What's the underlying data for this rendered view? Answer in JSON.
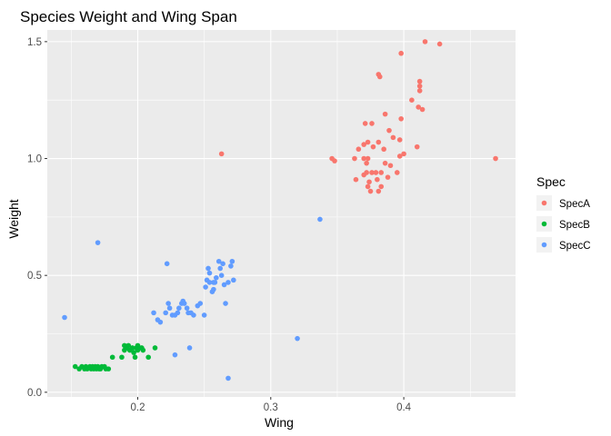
{
  "chart_data": {
    "type": "scatter",
    "title": "Species Weight and Wing Span",
    "xlabel": "Wing",
    "ylabel": "Weight",
    "xlim": [
      0.132,
      0.484
    ],
    "ylim": [
      -0.02,
      1.55
    ],
    "x_ticks": [
      0.2,
      0.3,
      0.4
    ],
    "x_tick_labels": [
      "0.2",
      "0.3",
      "0.4"
    ],
    "y_ticks": [
      0.0,
      0.5,
      1.0,
      1.5
    ],
    "y_tick_labels": [
      "0.0",
      "0.5",
      "1.0",
      "1.5"
    ],
    "grid": true,
    "legend_title": "Spec",
    "legend_position": "right",
    "panel_color": "#ebebeb",
    "grid_color": "#ffffff",
    "series": [
      {
        "name": "SpecA",
        "color": "#F8766D",
        "points": [
          [
            0.416,
            1.5
          ],
          [
            0.427,
            1.49
          ],
          [
            0.398,
            1.45
          ],
          [
            0.381,
            1.36
          ],
          [
            0.382,
            1.35
          ],
          [
            0.412,
            1.33
          ],
          [
            0.412,
            1.31
          ],
          [
            0.412,
            1.29
          ],
          [
            0.406,
            1.25
          ],
          [
            0.411,
            1.22
          ],
          [
            0.414,
            1.21
          ],
          [
            0.386,
            1.19
          ],
          [
            0.398,
            1.17
          ],
          [
            0.371,
            1.15
          ],
          [
            0.376,
            1.15
          ],
          [
            0.389,
            1.12
          ],
          [
            0.392,
            1.09
          ],
          [
            0.397,
            1.08
          ],
          [
            0.381,
            1.07
          ],
          [
            0.37,
            1.06
          ],
          [
            0.373,
            1.07
          ],
          [
            0.377,
            1.05
          ],
          [
            0.385,
            1.04
          ],
          [
            0.41,
            1.05
          ],
          [
            0.366,
            1.04
          ],
          [
            0.4,
            1.02
          ],
          [
            0.397,
            1.01
          ],
          [
            0.37,
            1.0
          ],
          [
            0.373,
            1.0
          ],
          [
            0.363,
            1.0
          ],
          [
            0.346,
            1.0
          ],
          [
            0.348,
            0.99
          ],
          [
            0.372,
            0.98
          ],
          [
            0.386,
            0.98
          ],
          [
            0.469,
            1.0
          ],
          [
            0.39,
            0.97
          ],
          [
            0.372,
            0.94
          ],
          [
            0.376,
            0.94
          ],
          [
            0.379,
            0.94
          ],
          [
            0.383,
            0.94
          ],
          [
            0.37,
            0.93
          ],
          [
            0.388,
            0.92
          ],
          [
            0.395,
            0.94
          ],
          [
            0.374,
            0.9
          ],
          [
            0.364,
            0.91
          ],
          [
            0.38,
            0.91
          ],
          [
            0.373,
            0.88
          ],
          [
            0.383,
            0.88
          ],
          [
            0.375,
            0.86
          ],
          [
            0.381,
            0.86
          ],
          [
            0.263,
            1.02
          ]
        ]
      },
      {
        "name": "SpecB",
        "color": "#00BA38",
        "points": [
          [
            0.153,
            0.11
          ],
          [
            0.156,
            0.1
          ],
          [
            0.158,
            0.11
          ],
          [
            0.16,
            0.1
          ],
          [
            0.161,
            0.11
          ],
          [
            0.162,
            0.1
          ],
          [
            0.164,
            0.11
          ],
          [
            0.165,
            0.1
          ],
          [
            0.166,
            0.11
          ],
          [
            0.167,
            0.1
          ],
          [
            0.168,
            0.11
          ],
          [
            0.169,
            0.1
          ],
          [
            0.17,
            0.11
          ],
          [
            0.171,
            0.1
          ],
          [
            0.173,
            0.11
          ],
          [
            0.172,
            0.1
          ],
          [
            0.175,
            0.11
          ],
          [
            0.176,
            0.1
          ],
          [
            0.178,
            0.1
          ],
          [
            0.181,
            0.15
          ],
          [
            0.19,
            0.2
          ],
          [
            0.192,
            0.19
          ],
          [
            0.194,
            0.18
          ],
          [
            0.193,
            0.2
          ],
          [
            0.196,
            0.19
          ],
          [
            0.197,
            0.17
          ],
          [
            0.199,
            0.19
          ],
          [
            0.2,
            0.18
          ],
          [
            0.201,
            0.19
          ],
          [
            0.203,
            0.19
          ],
          [
            0.204,
            0.18
          ],
          [
            0.2,
            0.2
          ],
          [
            0.213,
            0.19
          ],
          [
            0.198,
            0.15
          ],
          [
            0.188,
            0.15
          ],
          [
            0.208,
            0.15
          ],
          [
            0.19,
            0.18
          ]
        ]
      },
      {
        "name": "SpecC",
        "color": "#619CFF",
        "points": [
          [
            0.145,
            0.32
          ],
          [
            0.17,
            0.64
          ],
          [
            0.222,
            0.55
          ],
          [
            0.212,
            0.34
          ],
          [
            0.215,
            0.31
          ],
          [
            0.217,
            0.3
          ],
          [
            0.221,
            0.34
          ],
          [
            0.223,
            0.38
          ],
          [
            0.224,
            0.36
          ],
          [
            0.226,
            0.33
          ],
          [
            0.228,
            0.33
          ],
          [
            0.23,
            0.34
          ],
          [
            0.231,
            0.36
          ],
          [
            0.233,
            0.38
          ],
          [
            0.234,
            0.39
          ],
          [
            0.235,
            0.38
          ],
          [
            0.237,
            0.36
          ],
          [
            0.238,
            0.34
          ],
          [
            0.24,
            0.34
          ],
          [
            0.242,
            0.33
          ],
          [
            0.245,
            0.37
          ],
          [
            0.247,
            0.38
          ],
          [
            0.25,
            0.33
          ],
          [
            0.251,
            0.45
          ],
          [
            0.252,
            0.48
          ],
          [
            0.253,
            0.53
          ],
          [
            0.254,
            0.51
          ],
          [
            0.254,
            0.47
          ],
          [
            0.256,
            0.43
          ],
          [
            0.257,
            0.47
          ],
          [
            0.259,
            0.49
          ],
          [
            0.261,
            0.56
          ],
          [
            0.262,
            0.53
          ],
          [
            0.263,
            0.5
          ],
          [
            0.264,
            0.55
          ],
          [
            0.265,
            0.46
          ],
          [
            0.266,
            0.38
          ],
          [
            0.268,
            0.47
          ],
          [
            0.27,
            0.54
          ],
          [
            0.271,
            0.56
          ],
          [
            0.272,
            0.48
          ],
          [
            0.239,
            0.19
          ],
          [
            0.228,
            0.16
          ],
          [
            0.268,
            0.06
          ],
          [
            0.32,
            0.23
          ],
          [
            0.337,
            0.74
          ],
          [
            0.258,
            0.47
          ],
          [
            0.257,
            0.44
          ]
        ]
      }
    ]
  }
}
